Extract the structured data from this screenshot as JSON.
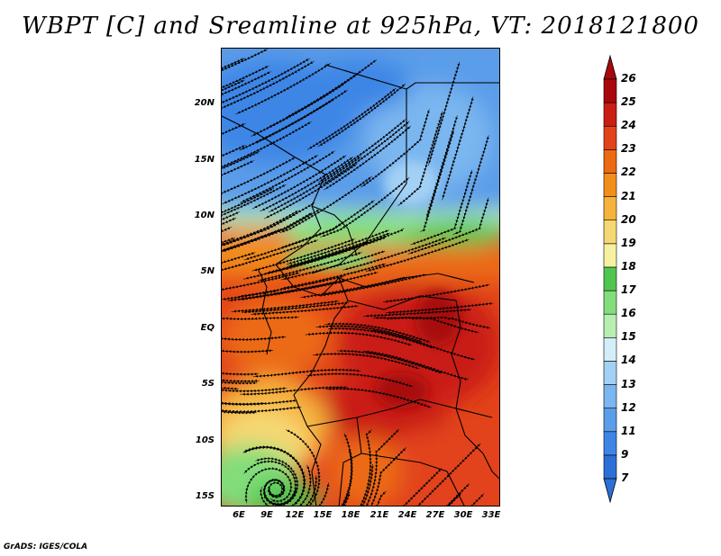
{
  "title": "WBPT [C] and Sreamline at 925hPa, VT: 2018121800",
  "footer": "GrADS: IGES/COLA",
  "lat_labels": [
    "20N",
    "15N",
    "10N",
    "5N",
    "EQ",
    "5S",
    "10S",
    "15S"
  ],
  "lon_labels": [
    "6E",
    "9E",
    "12E",
    "15E",
    "18E",
    "21E",
    "24E",
    "27E",
    "30E",
    "33E"
  ],
  "colorbar": {
    "levels": [
      "7",
      "9",
      "11",
      "12",
      "13",
      "14",
      "15",
      "16",
      "17",
      "18",
      "19",
      "20",
      "21",
      "22",
      "23",
      "24",
      "25",
      "26"
    ],
    "colors": [
      "#2d6fd6",
      "#3d86e6",
      "#5a9de9",
      "#7ab6ef",
      "#a3d0f5",
      "#d4eef9",
      "#b6efb0",
      "#82dd7a",
      "#50c650",
      "#f6f1a0",
      "#f6d873",
      "#f5b33c",
      "#f28f1b",
      "#ec6a12",
      "#e2431a",
      "#c91e14",
      "#a8080b"
    ]
  },
  "field": {
    "variable": "WBPT",
    "units": "C",
    "level": "925hPa",
    "valid_time": "2018121800",
    "lat_range": [
      "15S",
      "24N"
    ],
    "lon_range": [
      "4E",
      "34E"
    ]
  }
}
